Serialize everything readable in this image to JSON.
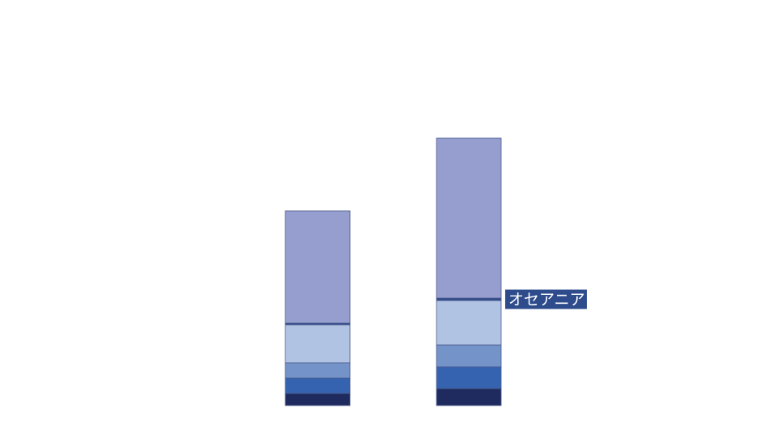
{
  "chart_data": {
    "type": "stacked_bar",
    "categories": [
      null,
      null
    ],
    "series": [
      {
        "color": "#1f2b5e",
        "values": [
          15,
          21
        ]
      },
      {
        "color": "#3563b0",
        "values": [
          19,
          27
        ]
      },
      {
        "color": "#7393c9",
        "values": [
          19,
          27
        ]
      },
      {
        "color": "#b1c3e3",
        "values": [
          47,
          55
        ]
      },
      {
        "name": "オセアニア",
        "color": "#2e4c8c",
        "values": [
          2,
          3
        ]
      },
      {
        "color": "#959ecf",
        "values": [
          139,
          198
        ]
      }
    ],
    "ylim": [
      0,
      502
    ]
  }
}
